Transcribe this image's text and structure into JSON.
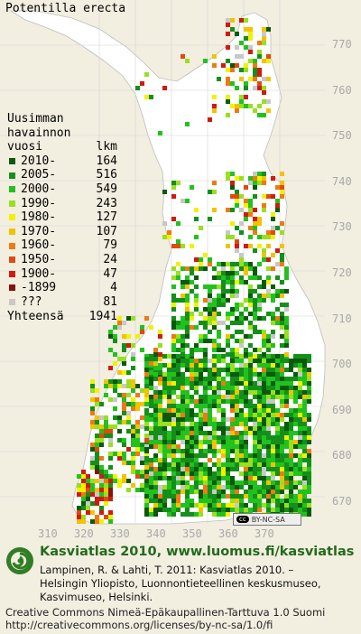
{
  "title": "Potentilla erecta",
  "legend": {
    "header_line1": "Uusimman",
    "header_line2": "havainnon",
    "header_col1": "vuosi",
    "header_col2": "lkm",
    "items": [
      {
        "label": "2010-",
        "count": "164",
        "color": "#0a5a0a"
      },
      {
        "label": "2005-",
        "count": "516",
        "color": "#14901a"
      },
      {
        "label": "2000-",
        "count": "549",
        "color": "#22c21e"
      },
      {
        "label": "1990-",
        "count": "243",
        "color": "#98e020"
      },
      {
        "label": "1980-",
        "count": "127",
        "color": "#f2f200"
      },
      {
        "label": "1970-",
        "count": "107",
        "color": "#f5c200"
      },
      {
        "label": "1960-",
        "count": "79",
        "color": "#f07a10"
      },
      {
        "label": "1950-",
        "count": "24",
        "color": "#e04a10"
      },
      {
        "label": "1900-",
        "count": "47",
        "color": "#d01a10"
      },
      {
        "label": "-1899",
        "count": "4",
        "color": "#8a1010"
      },
      {
        "label": "???",
        "count": "81",
        "color": "#c8c8c8"
      }
    ],
    "total_label": "Yhteensä",
    "total_count": "1941"
  },
  "y_ticks": [
    "770",
    "760",
    "750",
    "740",
    "730",
    "720",
    "710",
    "700",
    "690",
    "680",
    "670"
  ],
  "x_ticks": [
    "310",
    "320",
    "330",
    "340",
    "350",
    "360",
    "370"
  ],
  "license_badge": "BY-NC-SA",
  "footer": {
    "title": "Kasviatlas 2010, www.luomus.fi/kasviatlas",
    "ref_line1": "Lampinen, R. & Lahti, T. 2011: Kasviatlas 2010. –",
    "ref_line2": "Helsingin Yliopisto, Luonnontieteellinen keskusmuseo,",
    "ref_line3": "Kasvimuseo, Helsinki.",
    "license_line1": "Creative Commons Nimeä-Epäkaupallinen-Tarttuva 1.0 Suomi",
    "license_line2": "http://creativecommons.org/licenses/by-nc-sa/1.0/fi"
  },
  "colors": {
    "background": "#f2eee0",
    "land": "#ffffff",
    "grid": "#cfcfcf",
    "brand_green": "#226b1a"
  }
}
